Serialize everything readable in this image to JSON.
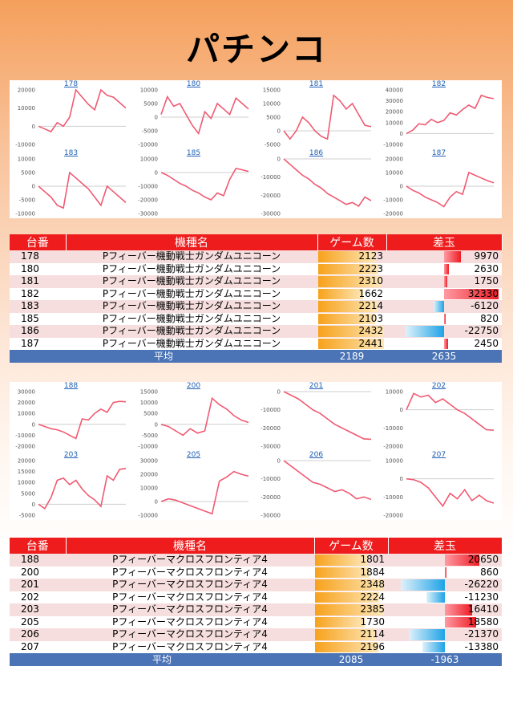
{
  "title": "パチンコ",
  "colors": {
    "line": "#f05a72",
    "header": "#ee1c1c",
    "avg": "#4a74b6"
  },
  "headers": {
    "no": "台番",
    "model": "機種名",
    "games": "ゲーム数",
    "diff": "差玉"
  },
  "avg_label": "平均",
  "chart_data": [
    {
      "type": "line",
      "title": "178",
      "ylim": [
        -10000,
        20000
      ],
      "yticks": [
        "20000",
        "10000",
        "0",
        "-10000"
      ],
      "values": [
        0,
        -1500,
        -3000,
        2000,
        0,
        5000,
        20000,
        16000,
        12000,
        9000,
        20000,
        17000,
        16000,
        13000,
        10000
      ]
    },
    {
      "type": "line",
      "title": "180",
      "ylim": [
        -10000,
        10000
      ],
      "yticks": [
        "10000",
        "5000",
        "0",
        "-5000",
        "-10000"
      ],
      "values": [
        1000,
        7500,
        4000,
        5000,
        1000,
        -3000,
        -6000,
        2000,
        -500,
        5000,
        3000,
        1000,
        7000,
        5000,
        3000
      ]
    },
    {
      "type": "line",
      "title": "181",
      "ylim": [
        -5000,
        15000
      ],
      "yticks": [
        "15000",
        "10000",
        "5000",
        "0",
        "-5000"
      ],
      "values": [
        0,
        -3000,
        0,
        5000,
        3000,
        0,
        -2000,
        -3000,
        13000,
        11000,
        8000,
        10000,
        6000,
        2000,
        1500
      ]
    },
    {
      "type": "line",
      "title": "182",
      "ylim": [
        -10000,
        40000
      ],
      "yticks": [
        "40000",
        "30000",
        "20000",
        "10000",
        "0",
        "-10000"
      ],
      "values": [
        0,
        3000,
        9000,
        8000,
        13000,
        10000,
        12000,
        19000,
        17000,
        22000,
        26000,
        23000,
        35000,
        33000,
        32000
      ]
    },
    {
      "type": "line",
      "title": "183",
      "ylim": [
        -10000,
        10000
      ],
      "yticks": [
        "10000",
        "5000",
        "0",
        "-5000",
        "-10000"
      ],
      "values": [
        0,
        -2000,
        -4000,
        -7000,
        -8000,
        5000,
        3000,
        1000,
        -1000,
        -4000,
        -7000,
        0,
        -2000,
        -4000,
        -6000
      ]
    },
    {
      "type": "line",
      "title": "185",
      "ylim": [
        -30000,
        10000
      ],
      "yticks": [
        "10000",
        "0",
        "-10000",
        "-20000",
        "-30000"
      ],
      "values": [
        0,
        -2000,
        -5000,
        -8000,
        -10000,
        -13000,
        -15000,
        -18000,
        -20000,
        -15000,
        -17000,
        -5000,
        3000,
        2000,
        800
      ]
    },
    {
      "type": "line",
      "title": "186",
      "ylim": [
        -30000,
        0
      ],
      "yticks": [
        "0",
        "-10000",
        "-20000",
        "-30000"
      ],
      "values": [
        0,
        -3000,
        -6000,
        -9000,
        -11000,
        -14000,
        -16000,
        -19000,
        -21000,
        -23000,
        -25000,
        -24000,
        -26000,
        -21000,
        -23000
      ]
    },
    {
      "type": "line",
      "title": "187",
      "ylim": [
        -20000,
        20000
      ],
      "yticks": [
        "20000",
        "10000",
        "0",
        "-10000",
        "-20000"
      ],
      "values": [
        0,
        -3000,
        -5000,
        -8000,
        -10000,
        -12000,
        -15000,
        -8000,
        -4000,
        -6000,
        10000,
        8000,
        6000,
        4000,
        2500
      ]
    },
    {
      "type": "line",
      "title": "188",
      "ylim": [
        -20000,
        30000
      ],
      "yticks": [
        "30000",
        "20000",
        "10000",
        "0",
        "-10000",
        "-20000"
      ],
      "values": [
        0,
        -2000,
        -4000,
        -5000,
        -7000,
        -10000,
        -13000,
        5000,
        4000,
        10000,
        14000,
        11000,
        20000,
        21000,
        20650
      ]
    },
    {
      "type": "line",
      "title": "200",
      "ylim": [
        -10000,
        15000
      ],
      "yticks": [
        "15000",
        "10000",
        "5000",
        "0",
        "-5000",
        "-10000"
      ],
      "values": [
        0,
        -1000,
        -3000,
        -5000,
        -2000,
        -4000,
        -3000,
        12000,
        9000,
        7000,
        4000,
        2000,
        860
      ]
    },
    {
      "type": "line",
      "title": "201",
      "ylim": [
        -30000,
        0
      ],
      "yticks": [
        "0",
        "-10000",
        "-20000",
        "-30000"
      ],
      "values": [
        0,
        -2000,
        -4000,
        -7000,
        -10000,
        -12000,
        -15000,
        -18000,
        -20000,
        -22000,
        -24000,
        -26000,
        -26220
      ]
    },
    {
      "type": "line",
      "title": "202",
      "ylim": [
        -20000,
        10000
      ],
      "yticks": [
        "10000",
        "0",
        "-10000",
        "-20000"
      ],
      "values": [
        0,
        9000,
        7000,
        8000,
        4000,
        6000,
        3000,
        0,
        -2000,
        -5000,
        -8000,
        -11000,
        -11230
      ]
    },
    {
      "type": "line",
      "title": "203",
      "ylim": [
        -5000,
        20000
      ],
      "yticks": [
        "20000",
        "15000",
        "10000",
        "5000",
        "0",
        "-5000"
      ],
      "values": [
        0,
        -2000,
        3000,
        11000,
        12000,
        9000,
        11000,
        7000,
        4000,
        2000,
        -1000,
        13000,
        11000,
        16000,
        16410
      ]
    },
    {
      "type": "line",
      "title": "205",
      "ylim": [
        -10000,
        30000
      ],
      "yticks": [
        "30000",
        "20000",
        "10000",
        "0",
        "-10000"
      ],
      "values": [
        0,
        2000,
        1000,
        -1000,
        -3000,
        -5000,
        -7000,
        -9000,
        15000,
        18000,
        22000,
        20000,
        18580
      ]
    },
    {
      "type": "line",
      "title": "206",
      "ylim": [
        -30000,
        0
      ],
      "yticks": [
        "0",
        "-10000",
        "-20000",
        "-30000"
      ],
      "values": [
        0,
        -3000,
        -6000,
        -9000,
        -12000,
        -13000,
        -15000,
        -17000,
        -16000,
        -18000,
        -21000,
        -20000,
        -21370
      ]
    },
    {
      "type": "line",
      "title": "207",
      "ylim": [
        -20000,
        10000
      ],
      "yticks": [
        "10000",
        "0",
        "-10000",
        "-20000"
      ],
      "values": [
        0,
        -500,
        -2000,
        -5000,
        -10000,
        -15000,
        -8000,
        -11000,
        -6000,
        -12000,
        -9000,
        -12000,
        -13380
      ]
    }
  ],
  "table1": {
    "rows": [
      {
        "no": "178",
        "model": "Pフィーバー機動戦士ガンダムユニコーン",
        "games": "2123",
        "diff": "9970",
        "g": 2123,
        "d": 9970
      },
      {
        "no": "180",
        "model": "Pフィーバー機動戦士ガンダムユニコーン",
        "games": "2223",
        "diff": "2630",
        "g": 2223,
        "d": 2630
      },
      {
        "no": "181",
        "model": "Pフィーバー機動戦士ガンダムユニコーン",
        "games": "2310",
        "diff": "1750",
        "g": 2310,
        "d": 1750
      },
      {
        "no": "182",
        "model": "Pフィーバー機動戦士ガンダムユニコーン",
        "games": "1662",
        "diff": "32330",
        "g": 1662,
        "d": 32330
      },
      {
        "no": "183",
        "model": "Pフィーバー機動戦士ガンダムユニコーン",
        "games": "2214",
        "diff": "-6120",
        "g": 2214,
        "d": -6120
      },
      {
        "no": "185",
        "model": "Pフィーバー機動戦士ガンダムユニコーン",
        "games": "2103",
        "diff": "820",
        "g": 2103,
        "d": 820
      },
      {
        "no": "186",
        "model": "Pフィーバー機動戦士ガンダムユニコーン",
        "games": "2432",
        "diff": "-22750",
        "g": 2432,
        "d": -22750
      },
      {
        "no": "187",
        "model": "Pフィーバー機動戦士ガンダムユニコーン",
        "games": "2441",
        "diff": "2450",
        "g": 2441,
        "d": 2450
      }
    ],
    "avg_games": "2189",
    "avg_diff": "2635"
  },
  "table2": {
    "rows": [
      {
        "no": "188",
        "model": "Pフィーバーマクロスフロンティア4",
        "games": "1801",
        "diff": "20650",
        "g": 1801,
        "d": 20650
      },
      {
        "no": "200",
        "model": "Pフィーバーマクロスフロンティア4",
        "games": "1884",
        "diff": "860",
        "g": 1884,
        "d": 860
      },
      {
        "no": "201",
        "model": "Pフィーバーマクロスフロンティア4",
        "games": "2348",
        "diff": "-26220",
        "g": 2348,
        "d": -26220
      },
      {
        "no": "202",
        "model": "Pフィーバーマクロスフロンティア4",
        "games": "2224",
        "diff": "-11230",
        "g": 2224,
        "d": -11230
      },
      {
        "no": "203",
        "model": "Pフィーバーマクロスフロンティア4",
        "games": "2385",
        "diff": "16410",
        "g": 2385,
        "d": 16410
      },
      {
        "no": "205",
        "model": "Pフィーバーマクロスフロンティア4",
        "games": "1730",
        "diff": "18580",
        "g": 1730,
        "d": 18580
      },
      {
        "no": "206",
        "model": "Pフィーバーマクロスフロンティア4",
        "games": "2114",
        "diff": "-21370",
        "g": 2114,
        "d": -21370
      },
      {
        "no": "207",
        "model": "Pフィーバーマクロスフロンティア4",
        "games": "2196",
        "diff": "-13380",
        "g": 2196,
        "d": -13380
      }
    ],
    "avg_games": "2085",
    "avg_diff": "-1963"
  }
}
